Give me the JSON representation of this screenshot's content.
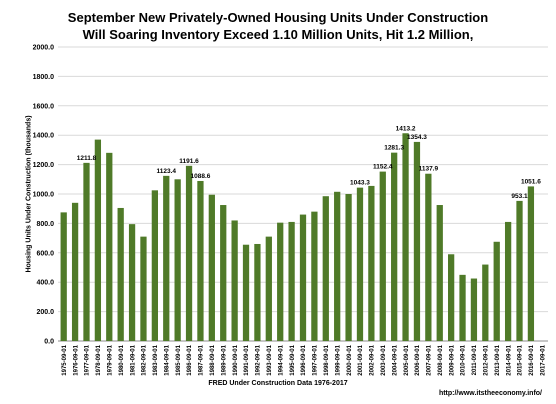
{
  "chart_data": {
    "type": "bar",
    "title": "September New Privately-Owned Housing Units Under Construction",
    "subtitle": "Will Soaring Inventory Exceed 1.10 Million Units, Hit 1.2 Million,",
    "xlabel": "FRED Under Construction Data 1976-2017",
    "ylabel": "Housing Units Under Construction (thousands)",
    "credit": "http://www.itstheeconomy.info/",
    "ylim": [
      0,
      2000
    ],
    "yticks": [
      "0.0",
      "200.0",
      "400.0",
      "600.0",
      "800.0",
      "1000.0",
      "1200.0",
      "1400.0",
      "1600.0",
      "1800.0",
      "2000.0"
    ],
    "grid": true,
    "bar_color": "#4f7a28",
    "categories": [
      "1975-09-01",
      "1976-09-01",
      "1977-09-01",
      "1978-09-01",
      "1979-09-01",
      "1980-09-01",
      "1981-09-01",
      "1982-09-01",
      "1983-09-01",
      "1984-09-01",
      "1985-09-01",
      "1986-09-01",
      "1987-09-01",
      "1988-09-01",
      "1989-09-01",
      "1990-09-01",
      "1991-09-01",
      "1992-09-01",
      "1993-09-01",
      "1994-09-01",
      "1995-09-01",
      "1996-09-01",
      "1997-09-01",
      "1998-09-01",
      "1999-09-01",
      "2000-09-01",
      "2001-09-01",
      "2002-09-01",
      "2003-09-01",
      "2004-09-01",
      "2005-09-01",
      "2006-09-01",
      "2007-09-01",
      "2008-09-01",
      "2009-09-01",
      "2010-09-01",
      "2011-09-01",
      "2012-09-01",
      "2013-09-01",
      "2014-09-01",
      "2015-09-01",
      "2016-09-01",
      "2017-09-01"
    ],
    "values": [
      875,
      940,
      1211.8,
      1370,
      1280,
      905,
      795,
      710,
      1025,
      1123.4,
      1100,
      1191.6,
      1088.6,
      995,
      925,
      820,
      655,
      660,
      710,
      805,
      810,
      860,
      880,
      985,
      1015,
      1000,
      1043.3,
      1055,
      1152.4,
      1281.3,
      1413.2,
      1354.3,
      1137.9,
      925,
      590,
      450,
      425,
      520,
      675,
      810,
      953.1,
      1051.6,
      null
    ],
    "data_labels": [
      null,
      null,
      "1211.8",
      null,
      null,
      null,
      null,
      null,
      null,
      "1123.4",
      null,
      "1191.6",
      "1088.6",
      null,
      null,
      null,
      null,
      null,
      null,
      null,
      null,
      null,
      null,
      null,
      null,
      null,
      "1043.3",
      null,
      "1152.4",
      "1281.3",
      "1413.2",
      "1354.3",
      "1137.9",
      null,
      null,
      null,
      null,
      null,
      null,
      null,
      "953.1",
      "1051.6",
      null
    ]
  }
}
